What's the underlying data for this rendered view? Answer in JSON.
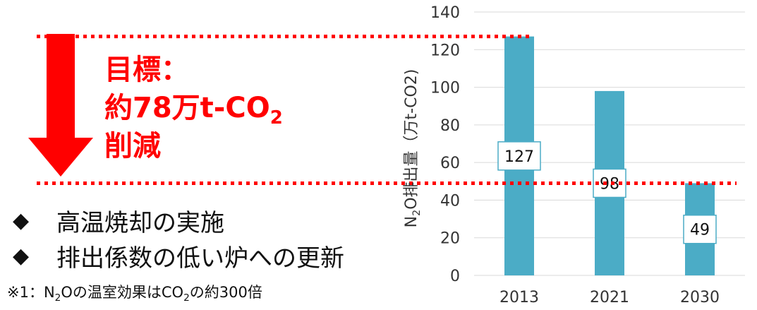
{
  "colors": {
    "bar": "#4BACC6",
    "accent": "#FF0000",
    "grid": "#D9D9D9",
    "text": "#333333"
  },
  "annotation": {
    "target_line1": "目標：",
    "target_line2_main": "約78万t-CO",
    "target_line2_sub": "2",
    "target_line3": "削減"
  },
  "bullets": [
    {
      "icon": "diamond-bullet-icon",
      "symbol": "◆",
      "text": "高温焼却の実施"
    },
    {
      "icon": "diamond-bullet-icon",
      "symbol": "◆",
      "text": "排出係数の低い炉への更新"
    }
  ],
  "footnote": {
    "prefix": "※1：N",
    "sub1": "2",
    "mid": "Oの温室効果はCO",
    "sub2": "2",
    "suffix": "の約300倍"
  },
  "chart_data": {
    "type": "bar",
    "categories": [
      "2013",
      "2021",
      "2030"
    ],
    "values": [
      127,
      98,
      49
    ],
    "data_labels": [
      "127",
      "98",
      "49"
    ],
    "ylabel_main": "N",
    "ylabel_sub": "2",
    "ylabel_rest": "O排出量（万t-CO2)",
    "ylim": [
      0,
      140
    ],
    "yticks": [
      0,
      20,
      40,
      60,
      80,
      100,
      120,
      140
    ],
    "grid": true,
    "reference_lines": [
      127,
      49
    ]
  }
}
